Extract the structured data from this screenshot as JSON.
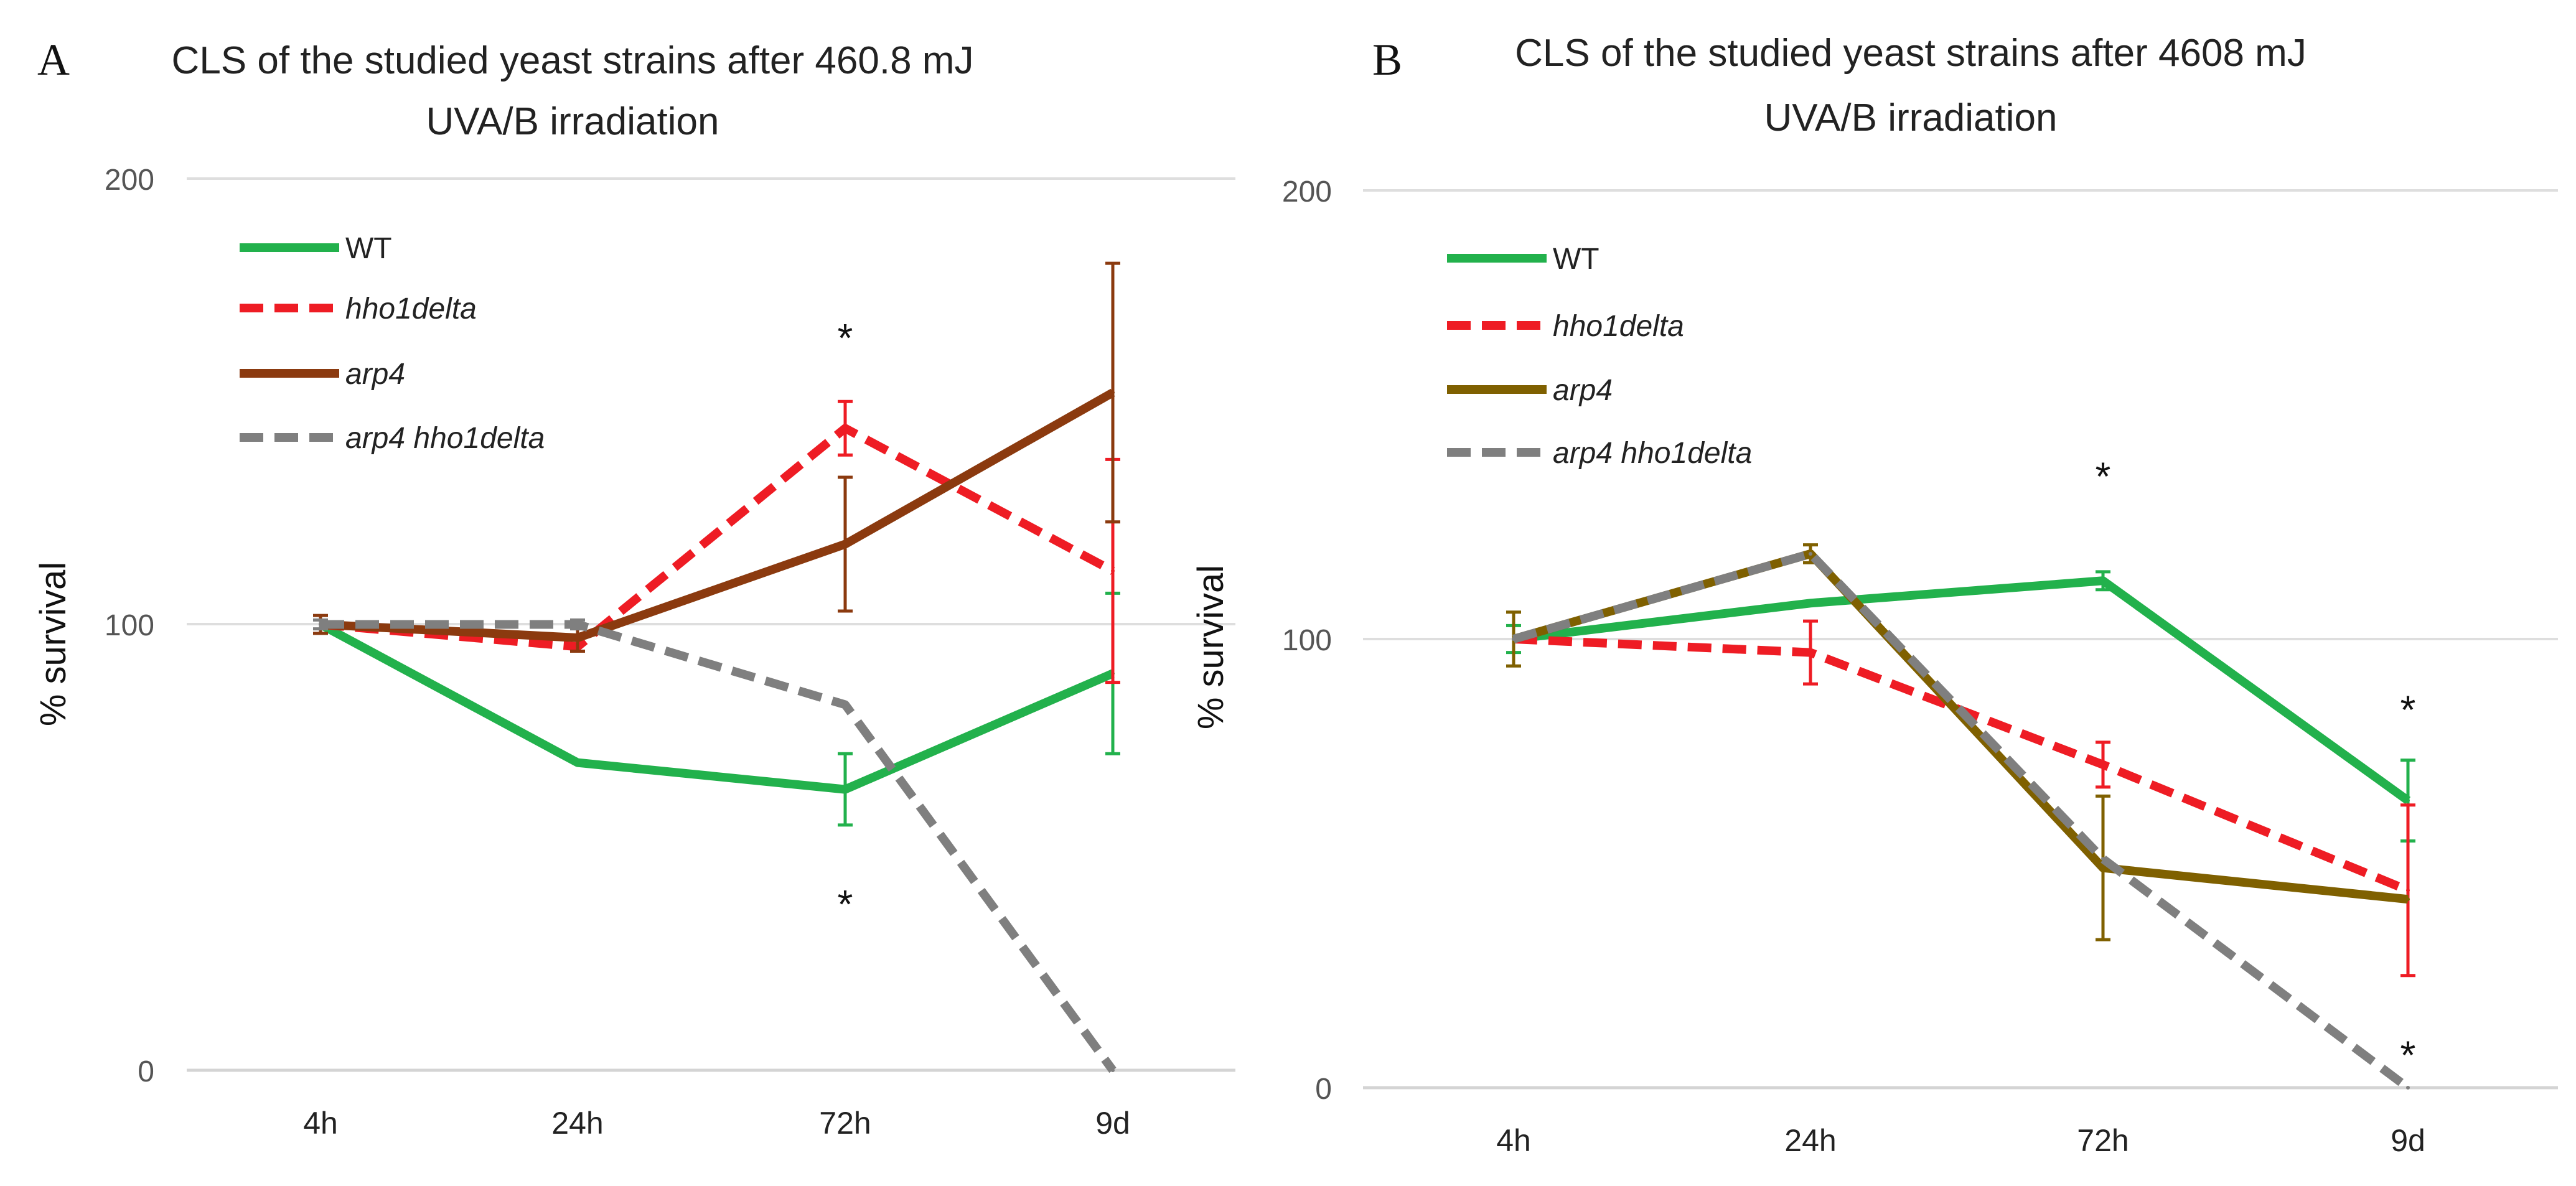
{
  "figure": {
    "panels": [
      "A",
      "B"
    ]
  },
  "chart_data": [
    {
      "panel": "A",
      "type": "line",
      "title_lines": [
        "CLS of the studied yeast strains after 460.8 mJ",
        "UVA/B irradiation"
      ],
      "xlabel": "",
      "ylabel": "% survival",
      "categories": [
        "4h",
        "24h",
        "72h",
        "9d"
      ],
      "yticks": [
        "0",
        "100",
        "200"
      ],
      "ylim": [
        0,
        200
      ],
      "grid": true,
      "legend_position": "top-left",
      "series": [
        {
          "name": "WT",
          "color": "#22b14c",
          "dash": "solid",
          "italic": false,
          "values": [
            100,
            69,
            63,
            89
          ],
          "errors": [
            null,
            null,
            8,
            18
          ]
        },
        {
          "name": "hho1delta",
          "color": "#ee1c24",
          "dash": "dashed",
          "italic": true,
          "values": [
            100,
            95,
            144,
            112
          ],
          "errors": [
            null,
            null,
            6,
            25
          ]
        },
        {
          "name": "arp4",
          "color": "#8b3a0f",
          "dash": "solid",
          "italic": true,
          "values": [
            100,
            97,
            118,
            152
          ],
          "errors": [
            2,
            3,
            15,
            29
          ]
        },
        {
          "name": "arp4 hho1delta",
          "color": "#7f7f7f",
          "dash": "dashed",
          "italic": true,
          "values": [
            100,
            100,
            82,
            0
          ],
          "errors": [
            1,
            1,
            null,
            null
          ]
        }
      ],
      "annotations": [
        {
          "text": "*",
          "x": "72h",
          "y": 164
        },
        {
          "text": "*",
          "x": "72h",
          "y": 37
        }
      ]
    },
    {
      "panel": "B",
      "type": "line",
      "title_lines": [
        "CLS of the studied yeast strains after 4608  mJ",
        "UVA/B irradiation"
      ],
      "xlabel": "",
      "ylabel": "% survival",
      "categories": [
        "4h",
        "24h",
        "72h",
        "9d"
      ],
      "yticks": [
        "0",
        "100",
        "200"
      ],
      "ylim": [
        0,
        200
      ],
      "grid": true,
      "legend_position": "top-left",
      "series": [
        {
          "name": "WT",
          "color": "#22b14c",
          "dash": "solid",
          "italic": false,
          "values": [
            100,
            108,
            113,
            64
          ],
          "errors": [
            3,
            null,
            2,
            9
          ]
        },
        {
          "name": "hho1delta",
          "color": "#ee1c24",
          "dash": "dashed",
          "italic": true,
          "values": [
            100,
            97,
            72,
            44
          ],
          "errors": [
            null,
            7,
            5,
            19
          ]
        },
        {
          "name": "arp4",
          "color": "#7f6000",
          "dash": "solid",
          "italic": true,
          "values": [
            100,
            119,
            49,
            42
          ],
          "errors": [
            6,
            2,
            16,
            null
          ]
        },
        {
          "name": "arp4 hho1delta",
          "color": "#7f7f7f",
          "dash": "dashed",
          "italic": true,
          "values": [
            100,
            119,
            51,
            0
          ],
          "errors": [
            null,
            null,
            null,
            null
          ]
        }
      ],
      "annotations": [
        {
          "text": "*",
          "x": "72h",
          "y": 136
        },
        {
          "text": "*",
          "x": "9d",
          "y": 84
        },
        {
          "text": "*",
          "x": "9d",
          "y": 7
        }
      ]
    }
  ]
}
